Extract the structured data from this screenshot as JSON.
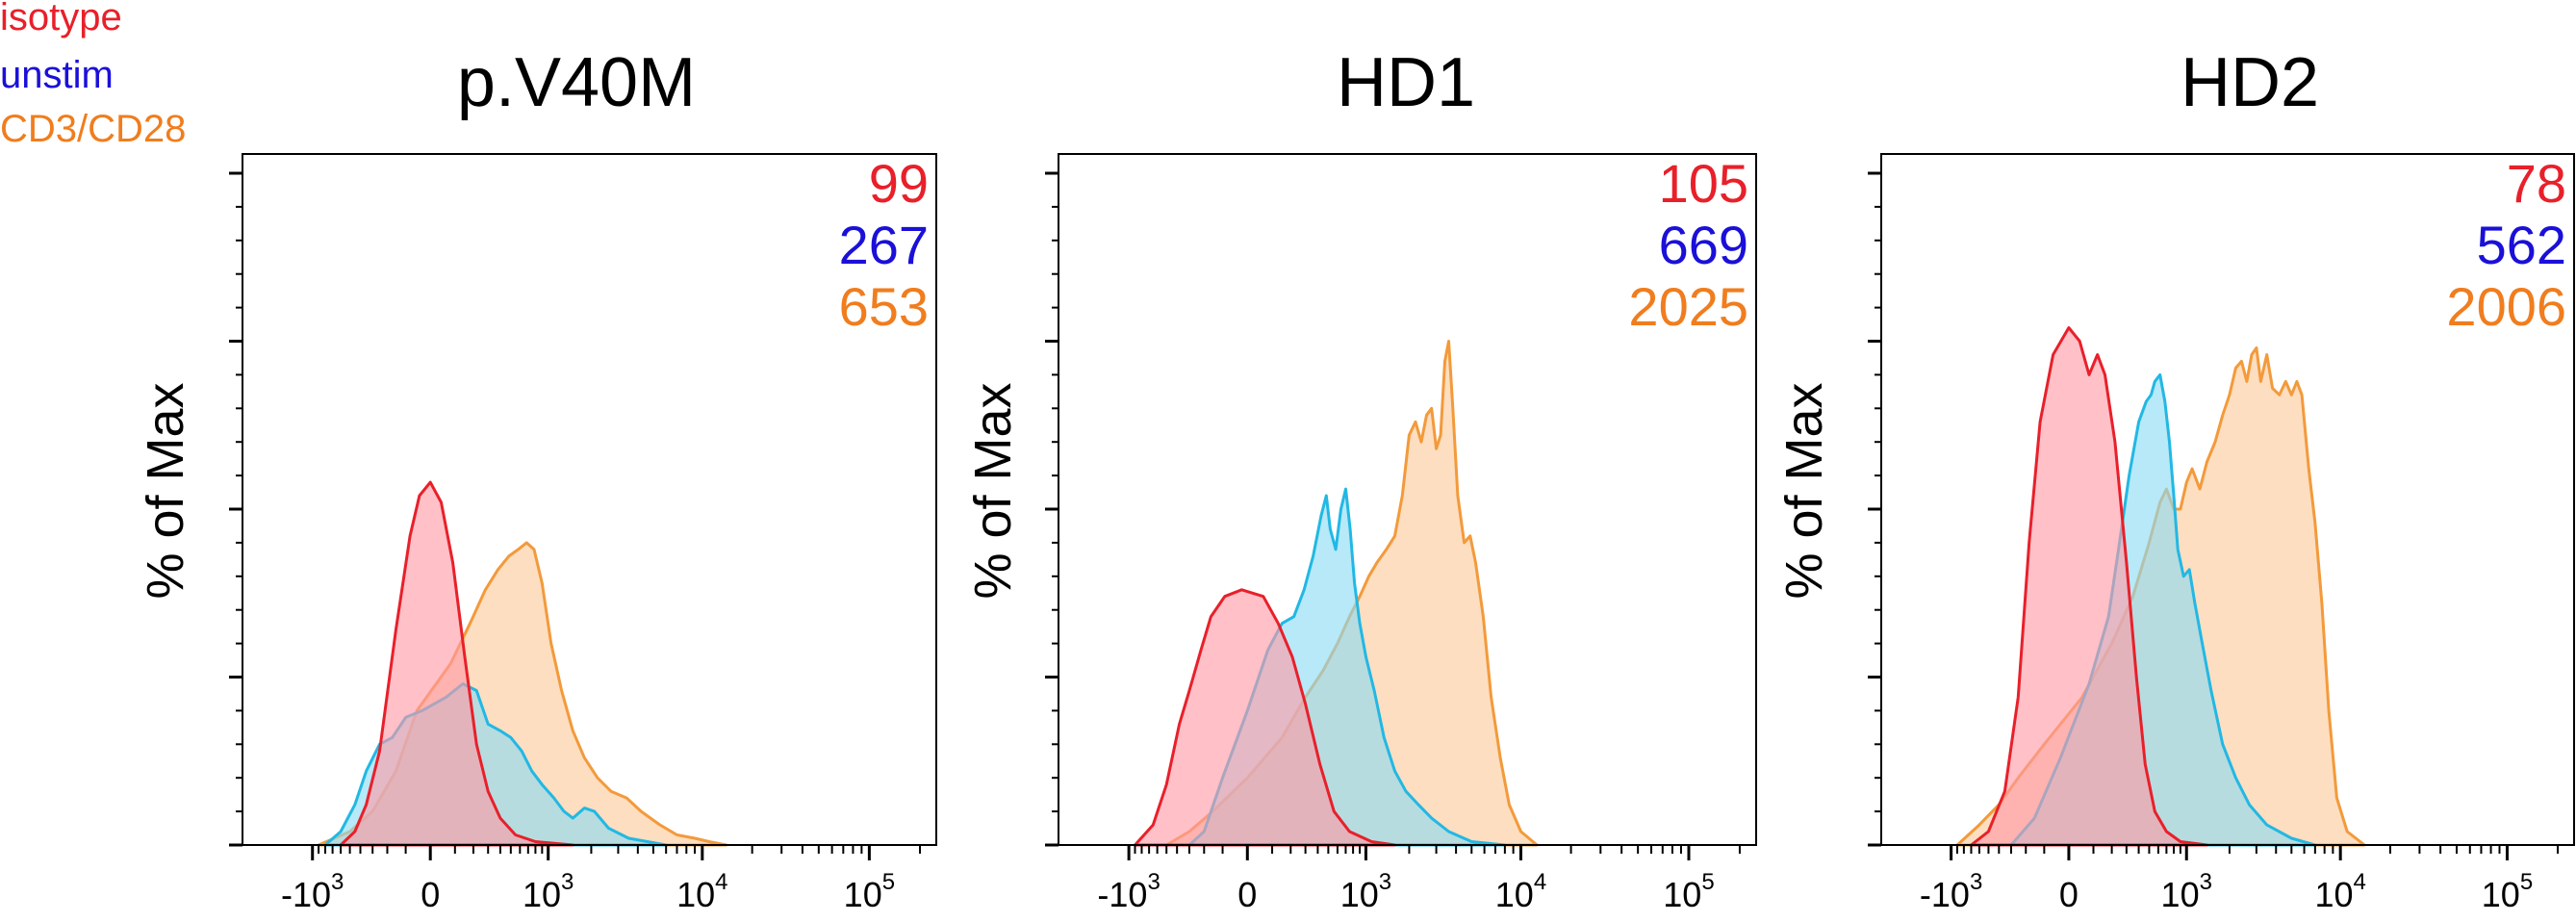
{
  "legend": [
    {
      "label": "isotype",
      "color": "#e8202a"
    },
    {
      "label": "unstim",
      "color": "#1a10d8"
    },
    {
      "label": "CD3/CD28",
      "color": "#f07d1e"
    }
  ],
  "chart_data": [
    {
      "type": "area",
      "title": "p.V40M",
      "ylabel": "% of Max",
      "xlabel": "",
      "xscale": "biexponential",
      "xticklabels": [
        "-10^3",
        "0",
        "10^3",
        "10^4",
        "10^5"
      ],
      "xlim": [
        -3000,
        250000
      ],
      "ylim": [
        0,
        100
      ],
      "legend_placement": "top-right (numbers)",
      "grid": false,
      "series": [
        {
          "name": "isotype",
          "stat": "99",
          "fill": "#ff9aa6",
          "stroke": "#e8202a",
          "points": [
            [
              -600,
              0
            ],
            [
              -450,
              2
            ],
            [
              -350,
              6
            ],
            [
              -250,
              14
            ],
            [
              -150,
              32
            ],
            [
              -80,
              46
            ],
            [
              -40,
              52
            ],
            [
              0,
              54
            ],
            [
              40,
              51
            ],
            [
              90,
              42
            ],
            [
              150,
              28
            ],
            [
              220,
              15
            ],
            [
              300,
              8
            ],
            [
              400,
              4
            ],
            [
              550,
              1.5
            ],
            [
              800,
              0.5
            ],
            [
              1500,
              0
            ]
          ]
        },
        {
          "name": "unstim",
          "stat": "267",
          "fill": "#8adcf4",
          "stroke": "#22b8e4",
          "points": [
            [
              -800,
              0
            ],
            [
              -600,
              2
            ],
            [
              -450,
              6
            ],
            [
              -350,
              11
            ],
            [
              -250,
              15
            ],
            [
              -170,
              16
            ],
            [
              -100,
              19
            ],
            [
              -30,
              20
            ],
            [
              60,
              22
            ],
            [
              140,
              24
            ],
            [
              220,
              23
            ],
            [
              300,
              18
            ],
            [
              400,
              17
            ],
            [
              500,
              16
            ],
            [
              620,
              14
            ],
            [
              750,
              11
            ],
            [
              900,
              9
            ],
            [
              1100,
              7
            ],
            [
              1300,
              5
            ],
            [
              1500,
              4
            ],
            [
              1800,
              5.5
            ],
            [
              2100,
              5
            ],
            [
              2600,
              2.5
            ],
            [
              3500,
              1
            ],
            [
              6000,
              0
            ]
          ]
        },
        {
          "name": "CD3/CD28",
          "stat": "653",
          "fill": "#fbc99a",
          "stroke": "#f39a3b",
          "points": [
            [
              -900,
              0
            ],
            [
              -500,
              2
            ],
            [
              -300,
              5
            ],
            [
              -150,
              11
            ],
            [
              -50,
              20
            ],
            [
              80,
              27
            ],
            [
              180,
              33
            ],
            [
              280,
              38
            ],
            [
              380,
              41
            ],
            [
              480,
              43
            ],
            [
              580,
              44
            ],
            [
              680,
              45
            ],
            [
              780,
              44
            ],
            [
              900,
              39
            ],
            [
              1050,
              30
            ],
            [
              1250,
              23
            ],
            [
              1500,
              17
            ],
            [
              1800,
              13
            ],
            [
              2200,
              10
            ],
            [
              2700,
              8
            ],
            [
              3400,
              7
            ],
            [
              4200,
              5
            ],
            [
              5500,
              3
            ],
            [
              7000,
              1.5
            ],
            [
              9000,
              1
            ],
            [
              11000,
              0.5
            ],
            [
              14000,
              0
            ]
          ]
        }
      ]
    },
    {
      "type": "area",
      "title": "HD1",
      "ylabel": "% of Max",
      "xlabel": "",
      "xscale": "biexponential",
      "xticklabels": [
        "-10^3",
        "0",
        "10^3",
        "10^4",
        "10^5"
      ],
      "xlim": [
        -3000,
        250000
      ],
      "ylim": [
        0,
        100
      ],
      "legend_placement": "top-right (numbers)",
      "grid": false,
      "series": [
        {
          "name": "isotype",
          "stat": "105",
          "fill": "#ff9aa6",
          "stroke": "#e8202a",
          "points": [
            [
              -900,
              0
            ],
            [
              -650,
              3
            ],
            [
              -500,
              9
            ],
            [
              -380,
              18
            ],
            [
              -300,
              23
            ],
            [
              -220,
              29
            ],
            [
              -160,
              34
            ],
            [
              -90,
              37
            ],
            [
              -20,
              38
            ],
            [
              60,
              37
            ],
            [
              130,
              33
            ],
            [
              210,
              28
            ],
            [
              300,
              21
            ],
            [
              420,
              12
            ],
            [
              560,
              5
            ],
            [
              750,
              2
            ],
            [
              1100,
              0.5
            ],
            [
              1600,
              0
            ]
          ]
        },
        {
          "name": "unstim",
          "stat": "669",
          "fill": "#8adcf4",
          "stroke": "#22b8e4",
          "points": [
            [
              -300,
              0
            ],
            [
              -200,
              2
            ],
            [
              -100,
              10
            ],
            [
              0,
              20
            ],
            [
              80,
              29
            ],
            [
              150,
              33
            ],
            [
              220,
              34
            ],
            [
              290,
              38
            ],
            [
              360,
              43
            ],
            [
              430,
              49
            ],
            [
              480,
              52
            ],
            [
              520,
              47
            ],
            [
              580,
              44
            ],
            [
              640,
              50
            ],
            [
              700,
              53
            ],
            [
              760,
              47
            ],
            [
              820,
              39
            ],
            [
              900,
              33
            ],
            [
              1000,
              28
            ],
            [
              1150,
              23
            ],
            [
              1350,
              16
            ],
            [
              1600,
              11
            ],
            [
              1900,
              8
            ],
            [
              2300,
              6
            ],
            [
              2800,
              4
            ],
            [
              3600,
              2
            ],
            [
              5000,
              0.5
            ],
            [
              8000,
              0
            ]
          ]
        },
        {
          "name": "CD3/CD28",
          "stat": "2025",
          "fill": "#fbc99a",
          "stroke": "#f39a3b",
          "points": [
            [
              -500,
              0
            ],
            [
              -300,
              2
            ],
            [
              -150,
              5
            ],
            [
              0,
              10
            ],
            [
              150,
              16
            ],
            [
              300,
              22
            ],
            [
              450,
              26
            ],
            [
              600,
              30
            ],
            [
              750,
              34
            ],
            [
              900,
              37
            ],
            [
              1050,
              40
            ],
            [
              1200,
              42
            ],
            [
              1400,
              44
            ],
            [
              1600,
              46
            ],
            [
              1800,
              52
            ],
            [
              2000,
              61
            ],
            [
              2200,
              63
            ],
            [
              2400,
              60
            ],
            [
              2600,
              64
            ],
            [
              2800,
              65
            ],
            [
              3000,
              59
            ],
            [
              3200,
              61
            ],
            [
              3400,
              72
            ],
            [
              3600,
              75
            ],
            [
              3800,
              66
            ],
            [
              4100,
              52
            ],
            [
              4500,
              45
            ],
            [
              4900,
              46
            ],
            [
              5300,
              42
            ],
            [
              5900,
              34
            ],
            [
              6600,
              22
            ],
            [
              7500,
              13
            ],
            [
              8500,
              6
            ],
            [
              10000,
              2
            ],
            [
              12500,
              0
            ]
          ]
        }
      ]
    },
    {
      "type": "area",
      "title": "HD2",
      "ylabel": "% of Max",
      "xlabel": "",
      "xscale": "biexponential",
      "xticklabels": [
        "-10^3",
        "0",
        "10^3",
        "10^4",
        "10^5"
      ],
      "xlim": [
        -3000,
        250000
      ],
      "ylim": [
        0,
        100
      ],
      "legend_placement": "top-right (numbers)",
      "grid": false,
      "series": [
        {
          "name": "isotype",
          "stat": "78",
          "fill": "#ff9aa6",
          "stroke": "#e8202a",
          "points": [
            [
              -700,
              0
            ],
            [
              -500,
              2
            ],
            [
              -350,
              8
            ],
            [
              -250,
              22
            ],
            [
              -180,
              45
            ],
            [
              -120,
              63
            ],
            [
              -60,
              73
            ],
            [
              0,
              77
            ],
            [
              40,
              75
            ],
            [
              80,
              70
            ],
            [
              120,
              73
            ],
            [
              160,
              70
            ],
            [
              220,
              60
            ],
            [
              300,
              42
            ],
            [
              380,
              25
            ],
            [
              460,
              12
            ],
            [
              560,
              5
            ],
            [
              700,
              2
            ],
            [
              900,
              0.5
            ],
            [
              1400,
              0
            ]
          ]
        },
        {
          "name": "unstim",
          "stat": "562",
          "fill": "#8adcf4",
          "stroke": "#22b8e4",
          "points": [
            [
              -300,
              0
            ],
            [
              -150,
              4
            ],
            [
              -30,
              13
            ],
            [
              80,
              24
            ],
            [
              180,
              34
            ],
            [
              250,
              45
            ],
            [
              320,
              55
            ],
            [
              400,
              63
            ],
            [
              470,
              66
            ],
            [
              520,
              67
            ],
            [
              560,
              69
            ],
            [
              620,
              70
            ],
            [
              680,
              66
            ],
            [
              740,
              60
            ],
            [
              800,
              52
            ],
            [
              860,
              44
            ],
            [
              950,
              40
            ],
            [
              1050,
              41
            ],
            [
              1150,
              36
            ],
            [
              1300,
              30
            ],
            [
              1500,
              23
            ],
            [
              1800,
              15
            ],
            [
              2200,
              10
            ],
            [
              2700,
              6
            ],
            [
              3500,
              3
            ],
            [
              5000,
              1
            ],
            [
              7000,
              0
            ]
          ]
        },
        {
          "name": "CD3/CD28",
          "stat": "2006",
          "fill": "#fbc99a",
          "stroke": "#f39a3b",
          "points": [
            [
              -900,
              0
            ],
            [
              -600,
              3
            ],
            [
              -400,
              6
            ],
            [
              -250,
              10
            ],
            [
              -100,
              15
            ],
            [
              50,
              22
            ],
            [
              200,
              30
            ],
            [
              350,
              37
            ],
            [
              500,
              45
            ],
            [
              620,
              51
            ],
            [
              700,
              53
            ],
            [
              800,
              50
            ],
            [
              900,
              50
            ],
            [
              1000,
              54
            ],
            [
              1100,
              56
            ],
            [
              1250,
              53
            ],
            [
              1400,
              57
            ],
            [
              1600,
              60
            ],
            [
              1800,
              64
            ],
            [
              2000,
              67
            ],
            [
              2200,
              71
            ],
            [
              2400,
              72
            ],
            [
              2600,
              69
            ],
            [
              2800,
              73
            ],
            [
              3000,
              74
            ],
            [
              3200,
              69
            ],
            [
              3500,
              73
            ],
            [
              3800,
              68
            ],
            [
              4200,
              67
            ],
            [
              4600,
              69
            ],
            [
              5000,
              67
            ],
            [
              5400,
              69
            ],
            [
              5800,
              67
            ],
            [
              6400,
              56
            ],
            [
              7000,
              48
            ],
            [
              7700,
              36
            ],
            [
              8500,
              20
            ],
            [
              9500,
              7
            ],
            [
              11000,
              2
            ],
            [
              14000,
              0
            ]
          ]
        }
      ]
    }
  ]
}
